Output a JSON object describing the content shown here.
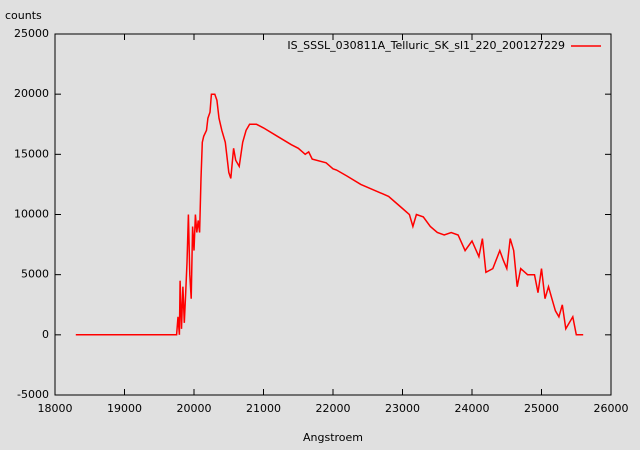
{
  "chart_data": {
    "type": "line",
    "y_label": "counts",
    "x_label": "Angstroem",
    "x": [
      18300,
      19750,
      19770,
      19790,
      19800,
      19820,
      19840,
      19860,
      19880,
      19900,
      19920,
      19940,
      19960,
      19980,
      20000,
      20020,
      20040,
      20060,
      20080,
      20100,
      20120,
      20140,
      20180,
      20200,
      20230,
      20250,
      20300,
      20330,
      20360,
      20400,
      20450,
      20500,
      20530,
      20570,
      20600,
      20650,
      20700,
      20750,
      20800,
      20900,
      21000,
      21200,
      21400,
      21500,
      21600,
      21650,
      21700,
      21900,
      22000,
      22050,
      22200,
      22400,
      22600,
      22800,
      22900,
      23000,
      23100,
      23150,
      23200,
      23300,
      23400,
      23500,
      23600,
      23700,
      23800,
      23900,
      24000,
      24100,
      24150,
      24200,
      24300,
      24400,
      24450,
      24500,
      24550,
      24600,
      24650,
      24700,
      24800,
      24900,
      24950,
      25000,
      25050,
      25100,
      25150,
      25200,
      25250,
      25300,
      25350,
      25400,
      25450,
      25500,
      25600
    ],
    "series": [
      {
        "name": "IS_SSSL_030811A_Telluric_SK_sl1_220_200127229",
        "color": "#ff0000",
        "values": [
          0,
          0,
          1500,
          0,
          4500,
          500,
          4000,
          1000,
          3500,
          6000,
          10000,
          5000,
          3000,
          9000,
          7000,
          10000,
          8500,
          9500,
          8500,
          13000,
          16000,
          16500,
          17000,
          18000,
          18500,
          20000,
          20000,
          19500,
          18000,
          17000,
          16000,
          13500,
          13000,
          15500,
          14500,
          14000,
          16000,
          17000,
          17500,
          17500,
          17200,
          16500,
          15800,
          15500,
          15000,
          15200,
          14600,
          14300,
          13800,
          13700,
          13200,
          12500,
          12000,
          11500,
          11000,
          10500,
          10000,
          9000,
          10000,
          9800,
          9000,
          8500,
          8300,
          8500,
          8300,
          7000,
          7800,
          6500,
          8000,
          5200,
          5500,
          7000,
          6200,
          5500,
          8000,
          7000,
          4000,
          5500,
          5000,
          5000,
          3500,
          5500,
          3000,
          4000,
          3000,
          2000,
          1500,
          2500,
          500,
          1000,
          1500,
          0,
          0
        ]
      }
    ],
    "xlim": [
      18000,
      26000
    ],
    "xticks": [
      18000,
      19000,
      20000,
      21000,
      22000,
      23000,
      24000,
      25000,
      26000
    ],
    "ylim": [
      -5000,
      25000
    ],
    "yticks": [
      -5000,
      0,
      5000,
      10000,
      15000,
      20000,
      25000
    ],
    "legend": "top-right"
  }
}
